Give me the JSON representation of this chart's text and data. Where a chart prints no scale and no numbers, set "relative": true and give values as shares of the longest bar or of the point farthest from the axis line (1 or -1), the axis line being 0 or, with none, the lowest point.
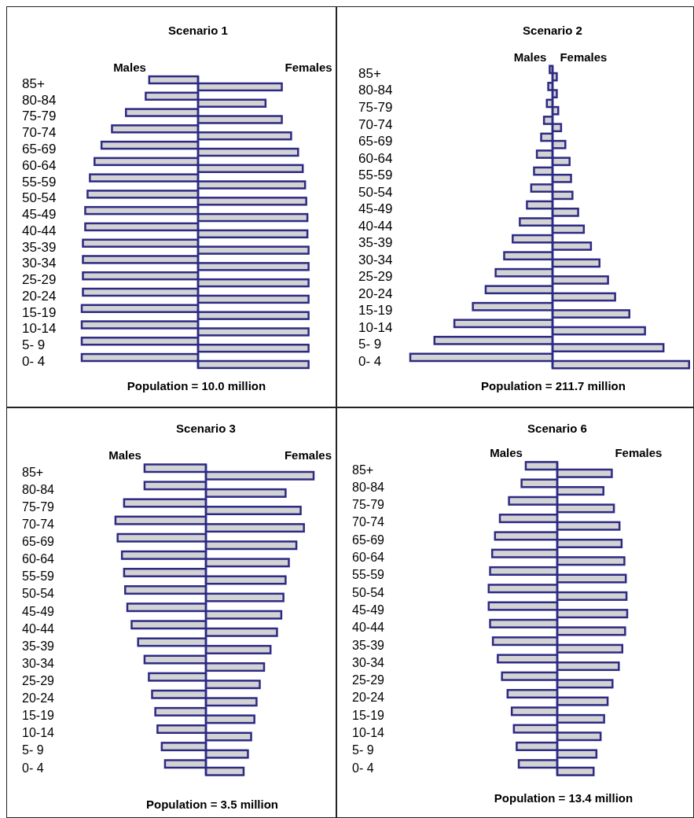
{
  "chart_data": [
    {
      "type": "bar",
      "orientation": "horizontal",
      "relative": true,
      "tick_labels": "y",
      "title": "Scenario 1",
      "categories": [
        "85+",
        "80-84",
        "75-79",
        "70-74",
        "65-69",
        "60-64",
        "55-59",
        "50-54",
        "45-49",
        "40-44",
        "35-39",
        "30-34",
        "25-29",
        "20-24",
        "15-19",
        "10-14",
        "5- 9",
        "0- 4"
      ],
      "series": [
        {
          "name": "Males",
          "color": "#d3d3d3",
          "values": [
            -0.42,
            -0.45,
            -0.62,
            -0.74,
            -0.83,
            -0.89,
            -0.93,
            -0.95,
            -0.97,
            -0.97,
            -0.99,
            -0.99,
            -0.99,
            -0.99,
            -1,
            -1,
            -1,
            -1
          ]
        },
        {
          "name": "Females",
          "color": "#d3d3d3",
          "values": [
            0.72,
            0.58,
            0.72,
            0.8,
            0.86,
            0.9,
            0.92,
            0.93,
            0.94,
            0.94,
            0.95,
            0.95,
            0.95,
            0.95,
            0.95,
            0.95,
            0.95,
            0.95
          ]
        }
      ],
      "ref_lines": [
        {
          "axis": "x",
          "value": 0
        }
      ],
      "annotations": [
        "Population = 10.0 million"
      ]
    },
    {
      "type": "bar",
      "orientation": "horizontal",
      "relative": true,
      "tick_labels": "y",
      "title": "Scenario 2",
      "categories": [
        "85+",
        "80-84",
        "75-79",
        "70-74",
        "65-69",
        "60-64",
        "55-59",
        "50-54",
        "45-49",
        "40-44",
        "35-39",
        "30-34",
        "25-29",
        "20-24",
        "15-19",
        "10-14",
        "5- 9",
        "0- 4"
      ],
      "series": [
        {
          "name": "Males",
          "color": "#d3d3d3",
          "values": [
            -0.02,
            -0.03,
            -0.04,
            -0.06,
            -0.08,
            -0.11,
            -0.13,
            -0.15,
            -0.18,
            -0.23,
            -0.28,
            -0.34,
            -0.4,
            -0.47,
            -0.56,
            -0.69,
            -0.83,
            -1
          ]
        },
        {
          "name": "Females",
          "color": "#d3d3d3",
          "values": [
            0.03,
            0.03,
            0.04,
            0.06,
            0.09,
            0.12,
            0.13,
            0.14,
            0.18,
            0.22,
            0.27,
            0.33,
            0.39,
            0.44,
            0.54,
            0.65,
            0.78,
            0.96
          ]
        }
      ],
      "ref_lines": [
        {
          "axis": "x",
          "value": 0
        }
      ],
      "annotations": [
        "Population = 211.7 million"
      ]
    },
    {
      "type": "bar",
      "orientation": "horizontal",
      "relative": true,
      "tick_labels": "y",
      "title": "Scenario 3",
      "categories": [
        "85+",
        "80-84",
        "75-79",
        "70-74",
        "65-69",
        "60-64",
        "55-59",
        "50-54",
        "45-49",
        "40-44",
        "35-39",
        "30-34",
        "25-29",
        "20-24",
        "15-19",
        "10-14",
        "5- 9",
        "0- 4"
      ],
      "series": [
        {
          "name": "Males",
          "color": "#d3d3d3",
          "values": [
            -0.57,
            -0.57,
            -0.76,
            -0.84,
            -0.82,
            -0.78,
            -0.76,
            -0.75,
            -0.73,
            -0.69,
            -0.63,
            -0.57,
            -0.53,
            -0.5,
            -0.47,
            -0.45,
            -0.41,
            -0.38
          ]
        },
        {
          "name": "Females",
          "color": "#d3d3d3",
          "values": [
            1,
            0.74,
            0.88,
            0.91,
            0.84,
            0.77,
            0.74,
            0.72,
            0.7,
            0.66,
            0.6,
            0.54,
            0.5,
            0.47,
            0.45,
            0.42,
            0.39,
            0.35
          ]
        }
      ],
      "ref_lines": [
        {
          "axis": "x",
          "value": 0
        }
      ],
      "annotations": [
        "Population = 3.5 million"
      ]
    },
    {
      "type": "bar",
      "orientation": "horizontal",
      "relative": true,
      "tick_labels": "y",
      "title": "Scenario 6",
      "categories": [
        "85+",
        "80-84",
        "75-79",
        "70-74",
        "65-69",
        "60-64",
        "55-59",
        "50-54",
        "45-49",
        "40-44",
        "35-39",
        "30-34",
        "25-29",
        "20-24",
        "15-19",
        "10-14",
        "5- 9",
        "0- 4"
      ],
      "series": [
        {
          "name": "Males",
          "color": "#d3d3d3",
          "values": [
            -0.45,
            -0.51,
            -0.69,
            -0.82,
            -0.89,
            -0.93,
            -0.96,
            -0.98,
            -0.98,
            -0.96,
            -0.92,
            -0.85,
            -0.79,
            -0.71,
            -0.65,
            -0.62,
            -0.58,
            -0.55
          ]
        },
        {
          "name": "Females",
          "color": "#d3d3d3",
          "values": [
            0.78,
            0.66,
            0.81,
            0.89,
            0.92,
            0.96,
            0.98,
            0.99,
            1,
            0.97,
            0.93,
            0.88,
            0.79,
            0.72,
            0.67,
            0.62,
            0.56,
            0.52
          ]
        }
      ],
      "ref_lines": [
        {
          "axis": "x",
          "value": 0
        }
      ],
      "annotations": [
        "Population = 13.4 million"
      ]
    }
  ]
}
